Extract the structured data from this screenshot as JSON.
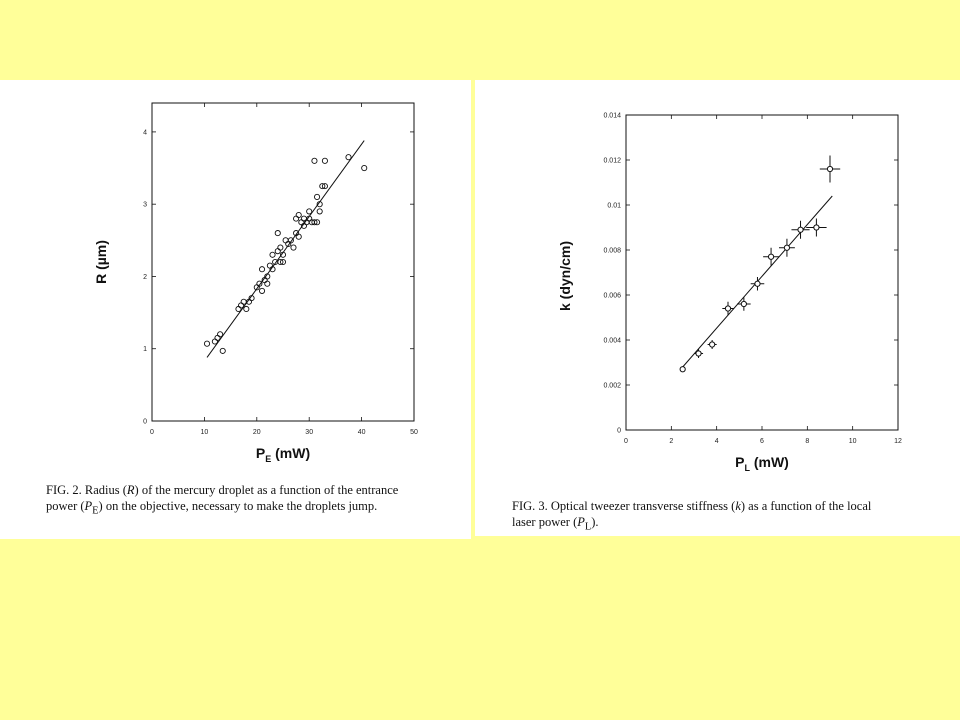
{
  "page": {
    "background": "#ffff99",
    "panel_background": "#ffffff"
  },
  "chart_data": [
    {
      "type": "scatter",
      "xlabel": "P",
      "xlabel_sub": "E",
      "xlabel_unit": " (mW)",
      "ylabel": "R (µm)",
      "xlim": [
        0,
        50
      ],
      "ylim": [
        0,
        4.4
      ],
      "xticks": [
        "0",
        "10",
        "20",
        "30",
        "40",
        "50"
      ],
      "yticks": [
        "0",
        "1",
        "2",
        "3",
        "4"
      ],
      "x": [
        10.5,
        12,
        12.5,
        13,
        13.5,
        16.5,
        17,
        17.5,
        18,
        18.5,
        19,
        20,
        20.5,
        21,
        21,
        21.5,
        22,
        22,
        22.5,
        23,
        23,
        23.5,
        24,
        24,
        24.5,
        24.5,
        25,
        25,
        25.5,
        26,
        26.5,
        27,
        27.5,
        27.5,
        28,
        28,
        28.5,
        29,
        29,
        29.5,
        30,
        30,
        30.5,
        31,
        31,
        31.5,
        31.5,
        32,
        32,
        32.5,
        33,
        33,
        37.5,
        40.5
      ],
      "y": [
        1.07,
        1.1,
        1.15,
        1.2,
        0.97,
        1.55,
        1.6,
        1.65,
        1.55,
        1.65,
        1.7,
        1.85,
        1.9,
        1.8,
        2.1,
        1.95,
        2.0,
        1.9,
        2.15,
        2.1,
        2.3,
        2.2,
        2.35,
        2.6,
        2.2,
        2.4,
        2.3,
        2.2,
        2.5,
        2.45,
        2.5,
        2.4,
        2.6,
        2.8,
        2.55,
        2.85,
        2.75,
        2.7,
        2.8,
        2.75,
        2.8,
        2.9,
        2.75,
        2.75,
        3.6,
        3.1,
        2.75,
        3.0,
        2.9,
        3.25,
        3.6,
        3.25,
        3.65,
        3.5
      ],
      "fit_line": {
        "x": [
          10.5,
          40.5
        ],
        "y": [
          0.88,
          3.88
        ]
      },
      "caption": "FIG. 2. Radius (R) of the mercury droplet as a function of the entrance power (P_E) on the objective, necessary to make the droplets jump."
    },
    {
      "type": "scatter",
      "xlabel": "P",
      "xlabel_sub": "L",
      "xlabel_unit": " (mW)",
      "ylabel": "k (dyn/cm)",
      "xlim": [
        0,
        12
      ],
      "ylim": [
        0,
        0.014
      ],
      "xticks": [
        "0",
        "2",
        "4",
        "6",
        "8",
        "10",
        "12"
      ],
      "yticks": [
        "0",
        "0.002",
        "0.004",
        "0.006",
        "0.008",
        "0.01",
        "0.012",
        "0.014"
      ],
      "x": [
        2.5,
        3.2,
        3.8,
        4.5,
        5.2,
        5.8,
        6.4,
        7.1,
        7.7,
        8.4,
        9.0
      ],
      "y": [
        0.0027,
        0.0034,
        0.0038,
        0.0054,
        0.0056,
        0.0065,
        0.0077,
        0.0081,
        0.0089,
        0.009,
        0.0116
      ],
      "xerr": [
        0.1,
        0.2,
        0.2,
        0.25,
        0.3,
        0.3,
        0.35,
        0.35,
        0.4,
        0.45,
        0.45
      ],
      "yerr": [
        0.0001,
        0.0002,
        0.0002,
        0.0003,
        0.0003,
        0.0003,
        0.0004,
        0.0004,
        0.0004,
        0.0004,
        0.0006
      ],
      "fit_line": {
        "x": [
          2.5,
          9.1
        ],
        "y": [
          0.0028,
          0.0104
        ]
      },
      "caption": "FIG. 3. Optical tweezer transverse stiffness (k) as a function of the local laser power (P_L)."
    }
  ],
  "captions": {
    "left": {
      "line1_a": "FIG. 2.  Radius (",
      "line1_R": "R",
      "line1_b": ") of the mercury droplet as a function of the entrance",
      "line2_a": "power (",
      "line2_P": "P",
      "line2_sub": "E",
      "line2_b": ") on the objective, necessary to make the droplets jump."
    },
    "right": {
      "line1_a": "FIG. 3.  Optical tweezer transverse stiffness (",
      "line1_k": "k",
      "line1_b": ") as a function of the local",
      "line2_a": "laser power (",
      "line2_P": "P",
      "line2_sub": "L",
      "line2_b": ")."
    }
  }
}
